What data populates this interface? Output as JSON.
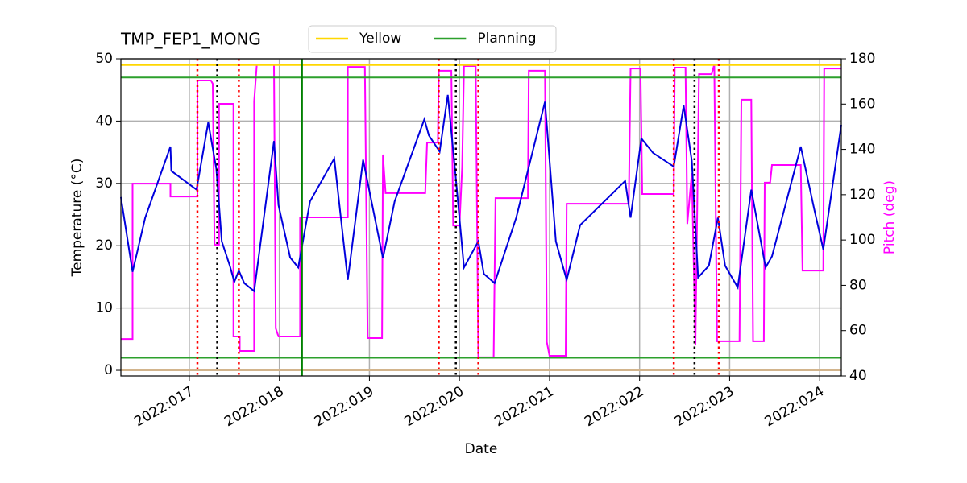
{
  "chart_data": {
    "type": "line",
    "title": "TMP_FEP1_MONG",
    "xlabel": "Date",
    "ylabel": "Temperature (°C)",
    "y2label": "Pitch (deg)",
    "y2color": "#ff00ff",
    "xlim": [
      16.24,
      24.24
    ],
    "xticks": [
      {
        "value": 17,
        "label": "2022:017"
      },
      {
        "value": 18,
        "label": "2022:018"
      },
      {
        "value": 19,
        "label": "2022:019"
      },
      {
        "value": 20,
        "label": "2022:020"
      },
      {
        "value": 21,
        "label": "2022:021"
      },
      {
        "value": 22,
        "label": "2022:022"
      },
      {
        "value": 23,
        "label": "2022:023"
      },
      {
        "value": 24,
        "label": "2022:024"
      }
    ],
    "ylim": [
      -0.9,
      50
    ],
    "yticks": [
      0,
      10,
      20,
      30,
      40,
      50
    ],
    "y2lim": [
      40,
      180
    ],
    "y2ticks": [
      40,
      60,
      80,
      100,
      120,
      140,
      160,
      180
    ],
    "grid": true,
    "series": [
      {
        "color": "#ff00ff",
        "axis": "y2",
        "x": [
          16.24,
          16.37,
          16.37,
          16.79,
          16.79,
          17.09,
          17.09,
          17.24,
          17.26,
          17.28,
          17.33,
          17.33,
          17.49,
          17.49,
          17.56,
          17.56,
          17.72,
          17.72,
          17.75,
          17.94,
          17.96,
          17.99,
          18.23,
          18.23,
          18.76,
          18.76,
          18.95,
          18.98,
          19.14,
          19.15,
          19.18,
          19.62,
          19.64,
          19.76,
          19.77,
          19.91,
          19.93,
          20.0,
          20.03,
          20.05,
          20.18,
          20.21,
          20.38,
          20.4,
          20.76,
          20.77,
          20.95,
          20.97,
          21.0,
          21.18,
          21.19,
          21.88,
          21.9,
          22.01,
          22.03,
          22.38,
          22.39,
          22.51,
          22.53,
          22.58,
          22.62,
          22.66,
          22.8,
          22.83,
          22.86,
          23.11,
          23.13,
          23.24,
          23.26,
          23.38,
          23.39,
          23.45,
          23.47,
          23.79,
          23.81,
          24.04,
          24.05,
          24.24
        ],
        "values": [
          56.3,
          56.3,
          124.9,
          124.9,
          119.2,
          119.2,
          170.4,
          170.4,
          169.0,
          97.9,
          97.9,
          160.1,
          160.1,
          57.4,
          57.4,
          51.0,
          51.0,
          161.2,
          177.5,
          177.5,
          61.0,
          57.4,
          57.4,
          110.0,
          110.0,
          176.4,
          176.4,
          56.7,
          56.7,
          137.7,
          120.7,
          120.7,
          143.0,
          143.0,
          174.7,
          174.7,
          106.4,
          106.4,
          132.0,
          176.8,
          176.8,
          48.2,
          48.2,
          118.5,
          118.5,
          174.7,
          174.7,
          55.0,
          48.9,
          48.9,
          116.0,
          116.0,
          175.7,
          175.7,
          120.3,
          120.3,
          176.1,
          176.1,
          107.1,
          129.5,
          53.8,
          173.2,
          173.2,
          177.5,
          55.3,
          55.3,
          161.9,
          161.9,
          55.3,
          55.3,
          125.3,
          125.3,
          133.1,
          133.1,
          86.5,
          86.5,
          175.7,
          175.7
        ]
      },
      {
        "color": "#0000dd",
        "x": [
          16.24,
          16.37,
          16.51,
          16.79,
          16.8,
          17.08,
          17.21,
          17.3,
          17.36,
          17.45,
          17.5,
          17.55,
          17.61,
          17.72,
          17.94,
          17.99,
          18.12,
          18.21,
          18.34,
          18.61,
          18.76,
          18.93,
          19.15,
          19.28,
          19.61,
          19.66,
          19.78,
          19.87,
          19.95,
          20.05,
          20.21,
          20.27,
          20.39,
          20.63,
          20.95,
          21.07,
          21.19,
          21.34,
          21.84,
          21.9,
          22.02,
          22.15,
          22.38,
          22.49,
          22.58,
          22.65,
          22.77,
          22.87,
          22.95,
          23.09,
          23.24,
          23.4,
          23.47,
          23.79,
          23.94,
          24.04,
          24.24
        ],
        "values": [
          27.8,
          15.8,
          24.5,
          35.9,
          32.0,
          29.0,
          39.8,
          32.3,
          20.7,
          16.8,
          14.2,
          16.0,
          14.0,
          12.7,
          36.8,
          26.5,
          18.1,
          16.5,
          27.1,
          34.0,
          14.5,
          33.8,
          18.0,
          27.1,
          40.3,
          37.7,
          35.1,
          44.2,
          32.3,
          16.5,
          20.7,
          15.5,
          14.0,
          24.5,
          43.1,
          20.7,
          14.5,
          23.3,
          30.4,
          24.5,
          37.2,
          34.9,
          32.7,
          42.5,
          33.6,
          14.9,
          16.8,
          24.5,
          16.8,
          13.3,
          29.0,
          16.5,
          18.3,
          35.9,
          25.8,
          19.4,
          39.4
        ]
      }
    ],
    "hlines": [
      {
        "name": "Yellow",
        "color": "#ffd700",
        "values": [
          49
        ]
      },
      {
        "name": "Planning",
        "color": "#2ca02c",
        "values": [
          47,
          2
        ]
      },
      {
        "color": "#d2b48c",
        "values": [
          0
        ]
      }
    ],
    "vlines": [
      {
        "color": "#ff0000",
        "style": "dotted",
        "x": [
          17.09,
          17.55,
          19.77,
          20.21,
          22.38,
          22.88
        ]
      },
      {
        "color": "#000000",
        "style": "dotted",
        "x": [
          17.31,
          19.96,
          22.61
        ]
      },
      {
        "color": "#008000",
        "style": "solid",
        "x": [
          18.25
        ]
      }
    ]
  }
}
